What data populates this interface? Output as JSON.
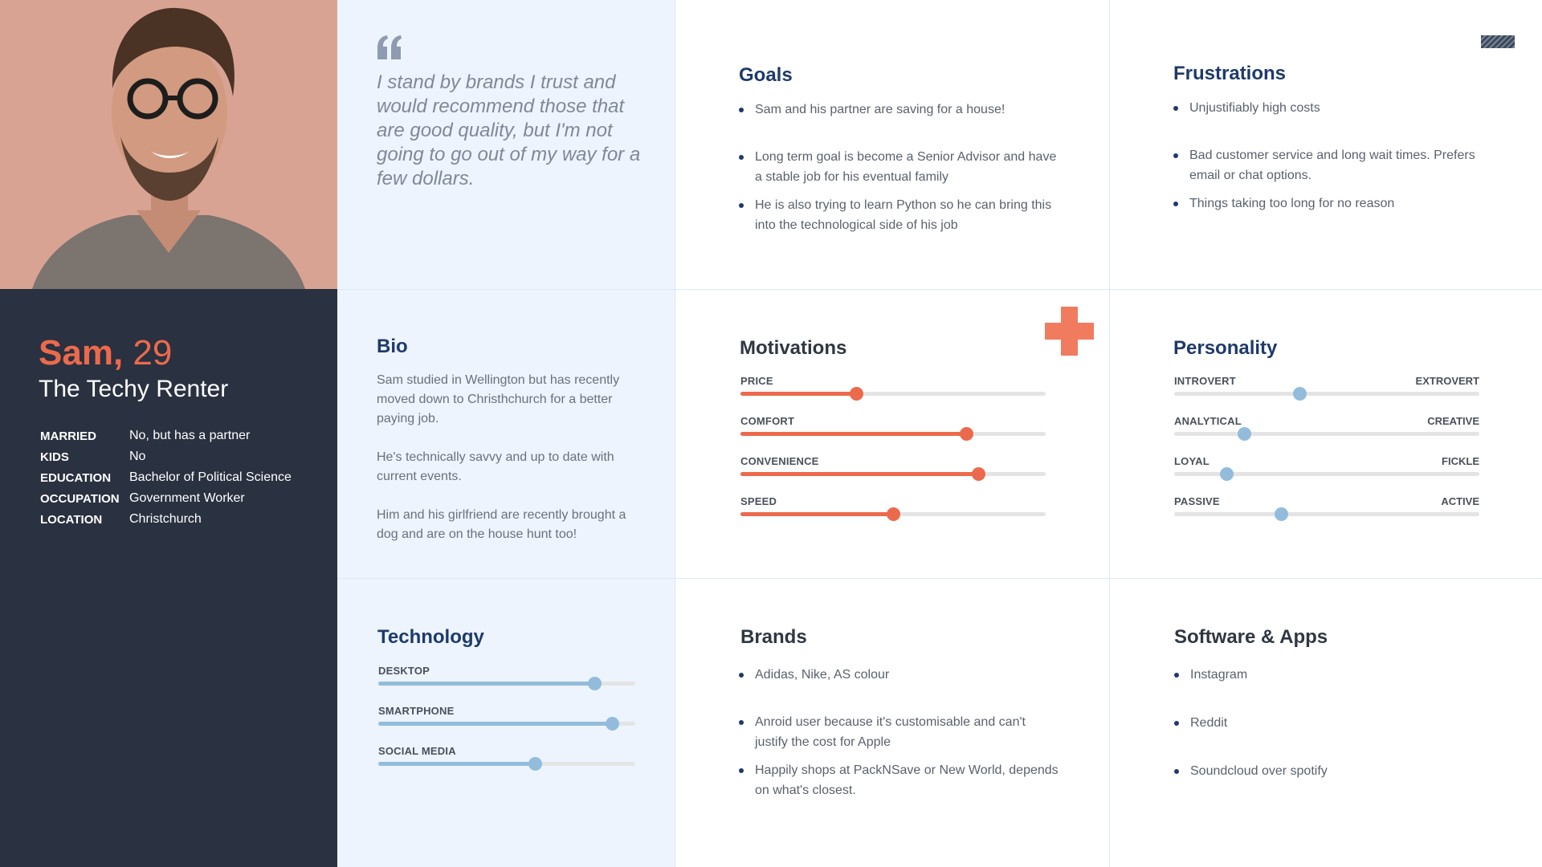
{
  "profile": {
    "name": "Sam,",
    "age": "29",
    "title": "The Techy Renter",
    "facts": [
      {
        "label": "MARRIED",
        "value": "No, but has a partner"
      },
      {
        "label": "KIDS",
        "value": "No"
      },
      {
        "label": "EDUCATION",
        "value": "Bachelor of Political Science"
      },
      {
        "label": "OCCUPATION",
        "value": "Government Worker"
      },
      {
        "label": "LOCATION",
        "value": "Christchurch"
      }
    ]
  },
  "quote": "I stand by brands I trust and would recommend those that are good quality, but I'm not going to go out of my way for a few dollars.",
  "goals": {
    "title": "Goals",
    "items": [
      "Sam and his partner are saving for a house!",
      "Long term goal is become a Senior Advisor and have a stable job for his eventual family",
      "He is also trying to learn Python so he can bring this into the technological side of his job"
    ]
  },
  "frustrations": {
    "title": "Frustrations",
    "items": [
      "Unjustifiably high costs",
      "Bad customer service and long wait times. Prefers email or chat options.",
      "Things taking too long for no reason"
    ]
  },
  "bio": {
    "title": "Bio",
    "paragraphs": [
      "Sam studied in Wellington but has recently moved down to Christhchurch for a better paying job.",
      "He's technically savvy and up to date with current events.",
      "Him and his girlfriend are recently brought a dog and are on the house hunt too!"
    ]
  },
  "motivations": {
    "title": "Motivations",
    "color": "#ec6a4c",
    "items": [
      {
        "label": "PRICE",
        "value": 0.38
      },
      {
        "label": "COMFORT",
        "value": 0.74
      },
      {
        "label": "CONVENIENCE",
        "value": 0.78
      },
      {
        "label": "SPEED",
        "value": 0.5
      }
    ]
  },
  "personality": {
    "title": "Personality",
    "color": "#93bcdc",
    "items": [
      {
        "left": "INTROVERT",
        "right": "EXTROVERT",
        "value": 0.41
      },
      {
        "left": "ANALYTICAL",
        "right": "CREATIVE",
        "value": 0.23
      },
      {
        "left": "LOYAL",
        "right": "FICKLE",
        "value": 0.17
      },
      {
        "left": "PASSIVE",
        "right": "ACTIVE",
        "value": 0.35
      }
    ]
  },
  "technology": {
    "title": "Technology",
    "color": "#93bcdc",
    "items": [
      {
        "label": "DESKTOP",
        "value": 0.84
      },
      {
        "label": "SMARTPHONE",
        "value": 0.91
      },
      {
        "label": "SOCIAL MEDIA",
        "value": 0.61
      }
    ]
  },
  "brands": {
    "title": "Brands",
    "items": [
      "Adidas, Nike,  AS colour",
      "Anroid user because it's customisable and can't justify the cost for Apple",
      "Happily shops at PackNSave or New World, depends on what's closest."
    ]
  },
  "software": {
    "title": "Software & Apps",
    "items": [
      "Instagram",
      "Reddit",
      "Soundcloud over spotify"
    ]
  }
}
